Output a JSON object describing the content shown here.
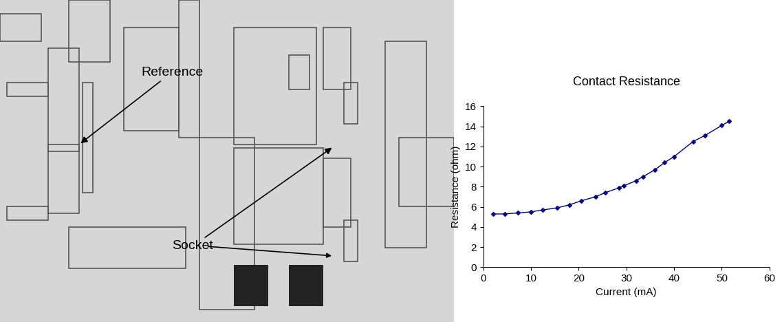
{
  "micrograph": {
    "labels": [
      "Reference",
      "Socket"
    ]
  },
  "chart_data": {
    "type": "line",
    "title": "Contact Resistance",
    "x_label": "Current (mA)",
    "y_label": "Resistance (ohm)",
    "x": [
      2,
      4.5,
      7.3,
      10,
      12.5,
      15.5,
      18,
      20.5,
      23.5,
      25.5,
      28.5,
      29.5,
      32,
      33.5,
      36,
      38,
      40,
      44,
      46.5,
      50,
      51.5
    ],
    "values": [
      5.3,
      5.3,
      5.4,
      5.5,
      5.7,
      5.9,
      6.2,
      6.6,
      7.0,
      7.4,
      7.9,
      8.1,
      8.6,
      9.0,
      9.7,
      10.4,
      11.0,
      12.5,
      13.1,
      14.1,
      14.5
    ],
    "color": "#000080",
    "marker": "diamond",
    "line_style": "solid",
    "xlim": [
      0,
      60
    ],
    "xticks": [
      0,
      10,
      20,
      30,
      40,
      50,
      60
    ],
    "ylim": [
      0,
      16
    ],
    "yticks": [
      0,
      2,
      4,
      6,
      8,
      10,
      12,
      14,
      16
    ],
    "grid": false
  }
}
